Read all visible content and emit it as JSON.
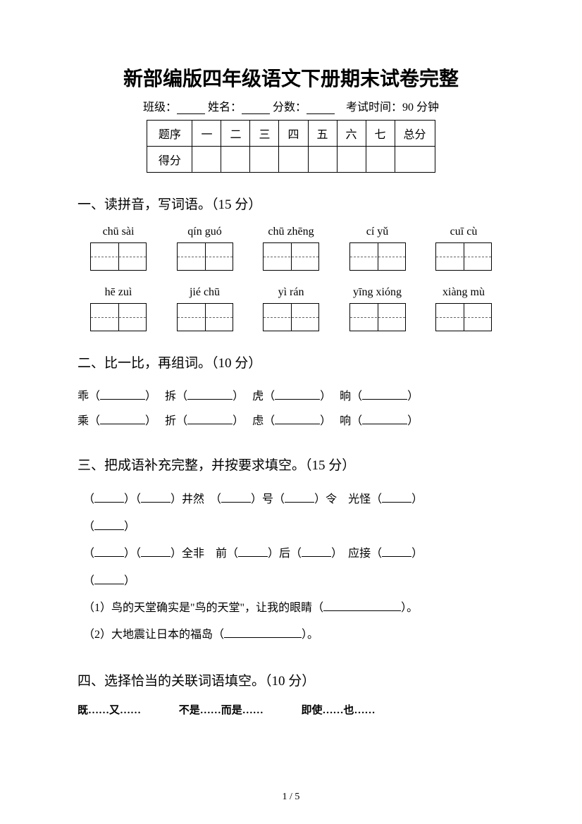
{
  "title": "新部编版四年级语文下册期末试卷完整",
  "info": {
    "class_label": "班级：",
    "name_label": "姓名：",
    "score_label": "分数：",
    "time_label": "考试时间：90 分钟"
  },
  "scoreTable": {
    "row1": [
      "题序",
      "一",
      "二",
      "三",
      "四",
      "五",
      "六",
      "七",
      "总分"
    ],
    "row2_label": "得分"
  },
  "section1": {
    "title": "一、读拼音，写词语。（15 分）",
    "pinyin_row1": [
      "chū sài",
      "qín guó",
      "chū zhēng",
      "cí yǔ",
      "cuī cù"
    ],
    "pinyin_row2": [
      "hē zuì",
      "jié chū",
      "yì rán",
      "yīng xióng",
      "xiàng mù"
    ]
  },
  "section2": {
    "title": "二、比一比，再组词。（10 分）",
    "pairs": [
      {
        "a": "乖",
        "b": "乘"
      },
      {
        "a": "拆",
        "b": "折"
      },
      {
        "a": "虎",
        "b": "虑"
      },
      {
        "a": "晌",
        "b": "响"
      }
    ]
  },
  "section3": {
    "title": "三、把成语补充完整，并按要求填空。（15 分）",
    "line1_parts": [
      "（",
      "）（",
      "）井然　（",
      "）号（",
      "）令　光怪（",
      "）"
    ],
    "line2": "（",
    "line2_end": "）",
    "line3_parts": [
      "（",
      "）（",
      "）全非　前（",
      "）后（",
      "）　应接（",
      "）"
    ],
    "line4": "（",
    "line4_end": "）",
    "q1": "（1）鸟的天堂确实是\"鸟的天堂\"，让我的眼睛（",
    "q1_end": "）。",
    "q2": "（2）大地震让日本的福岛（",
    "q2_end": "）。"
  },
  "section4": {
    "title": "四、选择恰当的关联词语填空。（10 分）",
    "conjunctions": [
      "既……又……",
      "不是……而是……",
      "即使……也……"
    ]
  },
  "footer": "1 / 5"
}
